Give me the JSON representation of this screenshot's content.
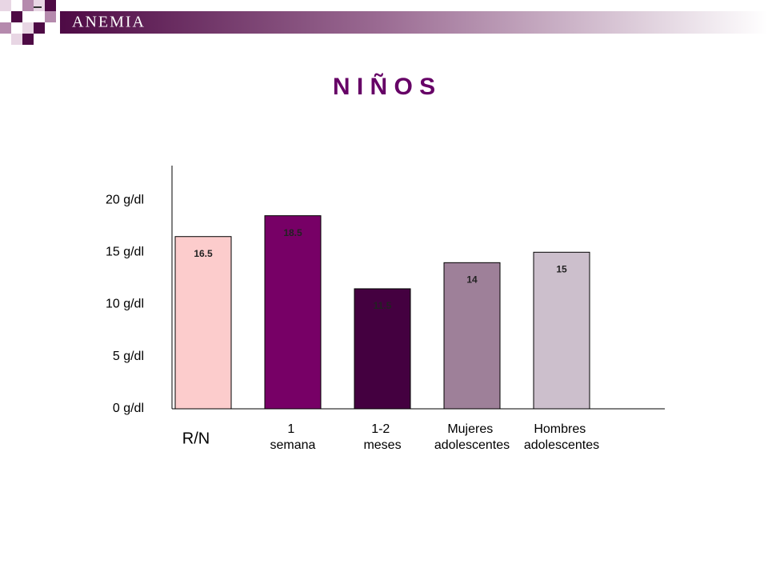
{
  "header": {
    "title": "ANEMIA"
  },
  "chart_data": {
    "type": "bar",
    "title": "N I Ñ O S",
    "categories": [
      "R/N",
      "1 semana",
      "1-2 meses",
      "Mujeres adolescentes",
      "Hombres adolescentes"
    ],
    "values": [
      16.5,
      18.5,
      11.5,
      14,
      15
    ],
    "colors": [
      "#fccccc",
      "#770066",
      "#440040",
      "#9e8099",
      "#ccbfcc"
    ],
    "ylim": [
      0,
      23.3
    ],
    "yticks": [
      {
        "value": 0,
        "label": "0 g/dl"
      },
      {
        "value": 5,
        "label": "5 g/dl"
      },
      {
        "value": 10,
        "label": "10 g/dl"
      },
      {
        "value": 15,
        "label": "15 g/dl"
      },
      {
        "value": 20,
        "label": "20 g/dl"
      }
    ],
    "grid": false
  }
}
